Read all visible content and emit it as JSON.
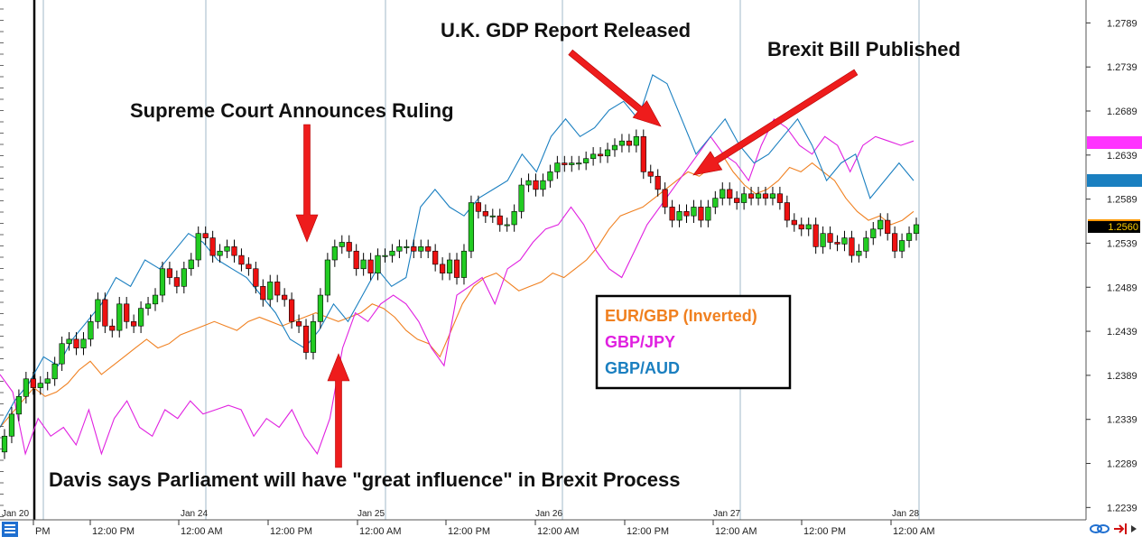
{
  "chart_data": {
    "type": "line",
    "ylim": [
      1.2225,
      1.2815
    ],
    "y_ticks": [
      "1.2789",
      "1.2739",
      "1.2689",
      "1.2639",
      "1.2589",
      "1.2539",
      "1.2489",
      "1.2439",
      "1.2389",
      "1.2339",
      "1.2289",
      "1.2239"
    ],
    "x_time_labels": [
      "PM",
      "12:00 PM",
      "12:00 AM",
      "12:00 PM",
      "12:00 AM",
      "12:00 PM",
      "12:00 AM",
      "12:00 PM",
      "12:00 AM",
      "12:00 PM",
      "12:00 AM"
    ],
    "x_date_labels": [
      "Jan 20",
      "Jan 24",
      "Jan 25",
      "Jan 26",
      "Jan 27",
      "Jan 28"
    ],
    "price_tag": "1.2560",
    "grid": "vertical day separators",
    "candles": [
      [
        1.2302,
        1.232
      ],
      [
        1.232,
        1.2345
      ],
      [
        1.2345,
        1.2365
      ],
      [
        1.2365,
        1.2385
      ],
      [
        1.2385,
        1.2375
      ],
      [
        1.2375,
        1.238
      ],
      [
        1.238,
        1.2385
      ],
      [
        1.2385,
        1.2402
      ],
      [
        1.2402,
        1.2425
      ],
      [
        1.2425,
        1.243
      ],
      [
        1.243,
        1.242
      ],
      [
        1.242,
        1.243
      ],
      [
        1.243,
        1.245
      ],
      [
        1.245,
        1.2475
      ],
      [
        1.2475,
        1.2445
      ],
      [
        1.2445,
        1.244
      ],
      [
        1.244,
        1.247
      ],
      [
        1.247,
        1.245
      ],
      [
        1.245,
        1.2445
      ],
      [
        1.2445,
        1.2465
      ],
      [
        1.2465,
        1.247
      ],
      [
        1.247,
        1.248
      ],
      [
        1.248,
        1.251
      ],
      [
        1.251,
        1.25
      ],
      [
        1.25,
        1.249
      ],
      [
        1.249,
        1.251
      ],
      [
        1.251,
        1.252
      ],
      [
        1.252,
        1.255
      ],
      [
        1.255,
        1.2545
      ],
      [
        1.2545,
        1.2525
      ],
      [
        1.2525,
        1.253
      ],
      [
        1.253,
        1.2535
      ],
      [
        1.2535,
        1.2525
      ],
      [
        1.2525,
        1.2515
      ],
      [
        1.2515,
        1.251
      ],
      [
        1.251,
        1.249
      ],
      [
        1.249,
        1.2475
      ],
      [
        1.2475,
        1.2495
      ],
      [
        1.2495,
        1.248
      ],
      [
        1.248,
        1.2475
      ],
      [
        1.2475,
        1.245
      ],
      [
        1.245,
        1.2445
      ],
      [
        1.2445,
        1.2415
      ],
      [
        1.2415,
        1.245
      ],
      [
        1.245,
        1.248
      ],
      [
        1.248,
        1.252
      ],
      [
        1.252,
        1.2535
      ],
      [
        1.2535,
        1.254
      ],
      [
        1.254,
        1.253
      ],
      [
        1.253,
        1.251
      ],
      [
        1.251,
        1.252
      ],
      [
        1.252,
        1.2505
      ],
      [
        1.2505,
        1.2525
      ],
      [
        1.2525,
        1.2525
      ],
      [
        1.2525,
        1.253
      ],
      [
        1.253,
        1.2535
      ],
      [
        1.2535,
        1.2535
      ],
      [
        1.2535,
        1.253
      ],
      [
        1.253,
        1.2535
      ],
      [
        1.2535,
        1.253
      ],
      [
        1.253,
        1.2515
      ],
      [
        1.2515,
        1.2505
      ],
      [
        1.2505,
        1.252
      ],
      [
        1.252,
        1.25
      ],
      [
        1.25,
        1.253
      ],
      [
        1.253,
        1.2585
      ],
      [
        1.2585,
        1.2575
      ],
      [
        1.2575,
        1.257
      ],
      [
        1.257,
        1.257
      ],
      [
        1.257,
        1.256
      ],
      [
        1.256,
        1.256
      ],
      [
        1.256,
        1.2575
      ],
      [
        1.2575,
        1.2605
      ],
      [
        1.2605,
        1.261
      ],
      [
        1.261,
        1.26
      ],
      [
        1.26,
        1.261
      ],
      [
        1.261,
        1.262
      ],
      [
        1.262,
        1.263
      ],
      [
        1.263,
        1.2628
      ],
      [
        1.2628,
        1.263
      ],
      [
        1.263,
        1.263
      ],
      [
        1.263,
        1.2635
      ],
      [
        1.2635,
        1.264
      ],
      [
        1.264,
        1.2638
      ],
      [
        1.2638,
        1.2645
      ],
      [
        1.2645,
        1.265
      ],
      [
        1.265,
        1.2655
      ],
      [
        1.2655,
        1.265
      ],
      [
        1.265,
        1.266
      ],
      [
        1.266,
        1.262
      ],
      [
        1.262,
        1.2615
      ],
      [
        1.2615,
        1.26
      ],
      [
        1.26,
        1.258
      ],
      [
        1.258,
        1.2565
      ],
      [
        1.2565,
        1.2575
      ],
      [
        1.2575,
        1.257
      ],
      [
        1.257,
        1.258
      ],
      [
        1.258,
        1.2565
      ],
      [
        1.2565,
        1.258
      ],
      [
        1.258,
        1.259
      ],
      [
        1.259,
        1.26
      ],
      [
        1.26,
        1.259
      ],
      [
        1.259,
        1.2585
      ],
      [
        1.2585,
        1.2595
      ],
      [
        1.2595,
        1.259
      ],
      [
        1.259,
        1.2595
      ],
      [
        1.2595,
        1.259
      ],
      [
        1.259,
        1.2595
      ],
      [
        1.2595,
        1.2585
      ],
      [
        1.2585,
        1.2565
      ],
      [
        1.2565,
        1.256
      ],
      [
        1.256,
        1.2555
      ],
      [
        1.2555,
        1.256
      ],
      [
        1.256,
        1.2535
      ],
      [
        1.2535,
        1.255
      ],
      [
        1.255,
        1.254
      ],
      [
        1.254,
        1.2538
      ],
      [
        1.2538,
        1.2545
      ],
      [
        1.2545,
        1.2525
      ],
      [
        1.2525,
        1.253
      ],
      [
        1.253,
        1.2545
      ],
      [
        1.2545,
        1.2555
      ],
      [
        1.2555,
        1.2565
      ],
      [
        1.2565,
        1.255
      ],
      [
        1.255,
        1.253
      ],
      [
        1.253,
        1.2542
      ],
      [
        1.2542,
        1.255
      ],
      [
        1.255,
        1.256
      ]
    ],
    "series": [
      {
        "name": "EUR/GBP (Inverted)",
        "color": "#f08020",
        "values": [
          1.233,
          1.2345,
          1.236,
          1.2375,
          1.2365,
          1.237,
          1.238,
          1.2395,
          1.2405,
          1.239,
          1.24,
          1.241,
          1.242,
          1.243,
          1.242,
          1.2425,
          1.2435,
          1.244,
          1.2445,
          1.245,
          1.2445,
          1.244,
          1.245,
          1.2455,
          1.245,
          1.2445,
          1.245,
          1.2455,
          1.246,
          1.2455,
          1.245,
          1.2455,
          1.246,
          1.247,
          1.2465,
          1.2455,
          1.244,
          1.243,
          1.2425,
          1.241,
          1.244,
          1.247,
          1.249,
          1.25,
          1.2505,
          1.2495,
          1.2485,
          1.249,
          1.2495,
          1.2505,
          1.25,
          1.251,
          1.252,
          1.2535,
          1.2555,
          1.257,
          1.2575,
          1.258,
          1.259,
          1.26,
          1.261,
          1.262,
          1.2615,
          1.2625,
          1.264,
          1.262,
          1.2605,
          1.2595,
          1.26,
          1.261,
          1.2625,
          1.262,
          1.263,
          1.262,
          1.261,
          1.259,
          1.2575,
          1.2565,
          1.257,
          1.256,
          1.2565,
          1.2575
        ]
      },
      {
        "name": "GBP/JPY",
        "color": "#e020e0",
        "values": [
          1.239,
          1.237,
          1.23,
          1.234,
          1.232,
          1.233,
          1.231,
          1.235,
          1.23,
          1.234,
          1.236,
          1.233,
          1.232,
          1.235,
          1.234,
          1.236,
          1.2345,
          1.235,
          1.2355,
          1.235,
          1.232,
          1.234,
          1.233,
          1.235,
          1.232,
          1.23,
          1.234,
          1.242,
          1.246,
          1.245,
          1.247,
          1.248,
          1.247,
          1.245,
          1.242,
          1.24,
          1.248,
          1.249,
          1.25,
          1.247,
          1.251,
          1.252,
          1.254,
          1.2555,
          1.256,
          1.258,
          1.256,
          1.253,
          1.251,
          1.25,
          1.253,
          1.256,
          1.258,
          1.26,
          1.262,
          1.264,
          1.266,
          1.264,
          1.263,
          1.261,
          1.265,
          1.268,
          1.267,
          1.265,
          1.264,
          1.266,
          1.265,
          1.262,
          1.265,
          1.266,
          1.2655,
          1.265,
          1.2655
        ]
      },
      {
        "name": "GBP/AUD",
        "color": "#1a7fc0",
        "values": [
          1.233,
          1.236,
          1.238,
          1.241,
          1.24,
          1.243,
          1.245,
          1.247,
          1.25,
          1.249,
          1.252,
          1.251,
          1.253,
          1.255,
          1.254,
          1.252,
          1.251,
          1.25,
          1.248,
          1.246,
          1.243,
          1.242,
          1.244,
          1.247,
          1.245,
          1.248,
          1.251,
          1.249,
          1.25,
          1.258,
          1.26,
          1.258,
          1.257,
          1.259,
          1.26,
          1.261,
          1.264,
          1.262,
          1.266,
          1.268,
          1.266,
          1.267,
          1.269,
          1.27,
          1.268,
          1.273,
          1.272,
          1.268,
          1.264,
          1.266,
          1.268,
          1.265,
          1.263,
          1.264,
          1.266,
          1.268,
          1.265,
          1.261,
          1.263,
          1.264,
          1.259,
          1.261,
          1.263,
          1.261
        ]
      }
    ],
    "annotations": [
      "Supreme Court Announces Ruling",
      "U.K. GDP Report Released",
      "Brexit Bill Published",
      "Davis says Parliament will have \"great influence\" in Brexit Process"
    ]
  },
  "right_tags": [
    {
      "color": "#ff33ff"
    },
    {
      "color": "#1a7fc0"
    },
    {
      "color": "#ff9900"
    }
  ],
  "colors": {
    "up": "#22cc22",
    "down": "#ee1111",
    "arrow": "#ee1c1c",
    "grid": "#8aa8bc"
  }
}
